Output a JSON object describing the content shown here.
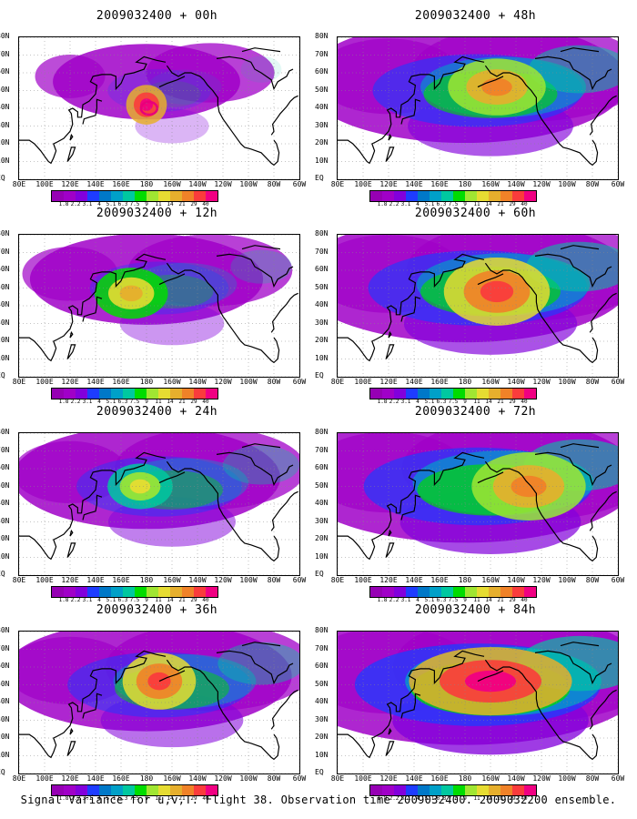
{
  "caption": "Signal Variance for u,v,T. Flight 38. Observation time 2009032400. 2009032200 ensemble.",
  "chart_data": [
    {
      "type": "heatmap",
      "title": "2009032400 + 00h",
      "lead": "00h",
      "intensity": 0.15,
      "features": [
        {
          "lon": 180,
          "lat": 42,
          "level": 12,
          "r": [
            10,
            7
          ]
        }
      ],
      "flight_marker": {
        "lon": 182,
        "lat": 40,
        "color": "#e8007a"
      }
    },
    {
      "type": "heatmap",
      "title": "2009032400 + 12h",
      "lead": "12h",
      "intensity": 0.35,
      "features": [
        {
          "lon": 168,
          "lat": 47,
          "level": 9,
          "r": [
            18,
            9
          ]
        }
      ]
    },
    {
      "type": "heatmap",
      "title": "2009032400 + 24h",
      "lead": "24h",
      "intensity": 0.5,
      "features": [
        {
          "lon": 175,
          "lat": 50,
          "level": 8,
          "r": [
            16,
            8
          ]
        }
      ]
    },
    {
      "type": "heatmap",
      "title": "2009032400 + 36h",
      "lead": "36h",
      "intensity": 0.6,
      "features": [
        {
          "lon": 190,
          "lat": 52,
          "level": 11,
          "r": [
            18,
            10
          ]
        }
      ]
    },
    {
      "type": "heatmap",
      "title": "2009032400 + 48h",
      "lead": "48h",
      "intensity": 0.75,
      "features": [
        {
          "lon": 205,
          "lat": 52,
          "level": 10,
          "r": [
            24,
            10
          ]
        }
      ]
    },
    {
      "type": "heatmap",
      "title": "2009032400 + 60h",
      "lead": "60h",
      "intensity": 0.8,
      "features": [
        {
          "lon": 205,
          "lat": 48,
          "level": 11,
          "r": [
            26,
            12
          ]
        }
      ]
    },
    {
      "type": "heatmap",
      "title": "2009032400 + 72h",
      "lead": "72h",
      "intensity": 0.85,
      "features": [
        {
          "lon": 230,
          "lat": 50,
          "level": 10,
          "r": [
            28,
            12
          ]
        }
      ]
    },
    {
      "type": "heatmap",
      "title": "2009032400 + 84h",
      "lead": "84h",
      "intensity": 0.95,
      "features": [
        {
          "lon": 200,
          "lat": 52,
          "level": 12,
          "r": [
            40,
            12
          ]
        }
      ]
    }
  ],
  "axes": {
    "x_ticks": [
      "80E",
      "100E",
      "120E",
      "140E",
      "160E",
      "180",
      "160W",
      "140W",
      "120W",
      "100W",
      "80W",
      "60W"
    ],
    "x_values": [
      80,
      100,
      120,
      140,
      160,
      180,
      200,
      220,
      240,
      260,
      280,
      300
    ],
    "y_ticks": [
      "EQ",
      "10N",
      "20N",
      "30N",
      "40N",
      "50N",
      "60N",
      "70N",
      "80N"
    ],
    "y_values": [
      0,
      10,
      20,
      30,
      40,
      50,
      60,
      70,
      80
    ],
    "xlim": [
      80,
      300
    ],
    "ylim": [
      0,
      80
    ]
  },
  "colorbar": {
    "labels": [
      "1.8",
      "2.2",
      "3.1",
      "4",
      "5.1",
      "6.3",
      "7.5",
      "9",
      "11",
      "14",
      "21",
      "29",
      "40"
    ],
    "colors": [
      "#a000c8",
      "#8200dc",
      "#1e3cff",
      "#0078c8",
      "#00a0c8",
      "#00c8a0",
      "#00dc00",
      "#a0e632",
      "#e6dc32",
      "#e6af2d",
      "#f08228",
      "#fa3c3c",
      "#f00082"
    ]
  }
}
